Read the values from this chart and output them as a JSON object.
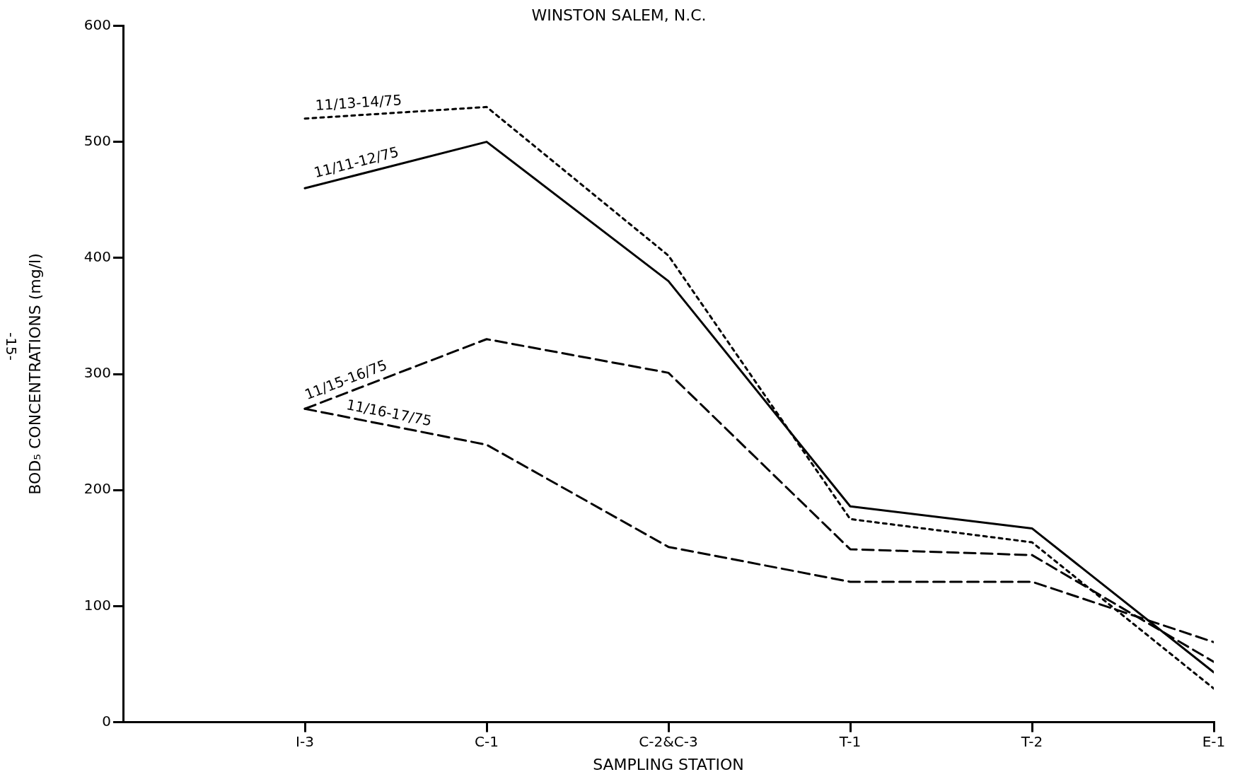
{
  "chart_data": {
    "type": "line",
    "title": "WINSTON SALEM, N.C.",
    "xlabel": "SAMPLING STATION",
    "ylabel": "BOD₅ CONCENTRATIONS (mg/l)",
    "annotations": [
      "-15-"
    ],
    "categories": [
      "I-3",
      "C-1",
      "C-2&C-3",
      "T-1",
      "T-2",
      "E-1"
    ],
    "ylim": [
      0,
      600
    ],
    "yticks": [
      0,
      100,
      200,
      300,
      400,
      500,
      600
    ],
    "grid": false,
    "legend": false,
    "marker": "none",
    "series": [
      {
        "name": "11/13-14/75",
        "color": "#000000",
        "line_style": "dotted",
        "values": [
          520,
          530,
          402,
          175,
          155,
          29
        ]
      },
      {
        "name": "11/11-12/75",
        "color": "#000000",
        "line_style": "solid",
        "values": [
          460,
          500,
          380,
          186,
          167,
          43
        ]
      },
      {
        "name": "11/15-16/75",
        "color": "#000000",
        "line_style": "dashed",
        "values": [
          270,
          330,
          301,
          149,
          144,
          52
        ]
      },
      {
        "name": "11/16-17/75",
        "color": "#000000",
        "line_style": "dashed",
        "values": [
          270,
          239,
          151,
          121,
          121,
          69
        ]
      }
    ]
  }
}
